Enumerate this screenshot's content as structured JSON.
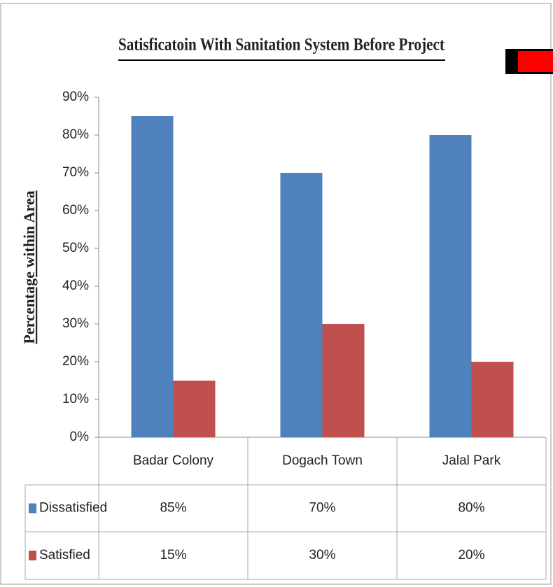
{
  "chart_data": {
    "type": "bar",
    "title": "Satisficatoin With Sanitation  System Before Project",
    "y_label": "Percentage within Area",
    "categories": [
      "Badar Colony",
      "Dogach Town",
      "Jalal Park"
    ],
    "series": [
      {
        "name": "Dissatisfied",
        "color": "#4f81bd",
        "values": [
          85,
          70,
          80
        ],
        "value_labels": [
          "85%",
          "70%",
          "80%"
        ]
      },
      {
        "name": "Satisfied",
        "color": "#c0504d",
        "values": [
          15,
          30,
          20
        ],
        "value_labels": [
          "15%",
          "30%",
          "20%"
        ]
      }
    ],
    "ylim": [
      0,
      90
    ],
    "yticks": [
      {
        "value": 0,
        "label": "0%"
      },
      {
        "value": 10,
        "label": "10%"
      },
      {
        "value": 20,
        "label": "20%"
      },
      {
        "value": 30,
        "label": "30%"
      },
      {
        "value": 40,
        "label": "40%"
      },
      {
        "value": 50,
        "label": "50%"
      },
      {
        "value": 60,
        "label": "60%"
      },
      {
        "value": 70,
        "label": "70%"
      },
      {
        "value": 80,
        "label": "80%"
      },
      {
        "value": 90,
        "label": "90%"
      }
    ],
    "grid": false
  }
}
